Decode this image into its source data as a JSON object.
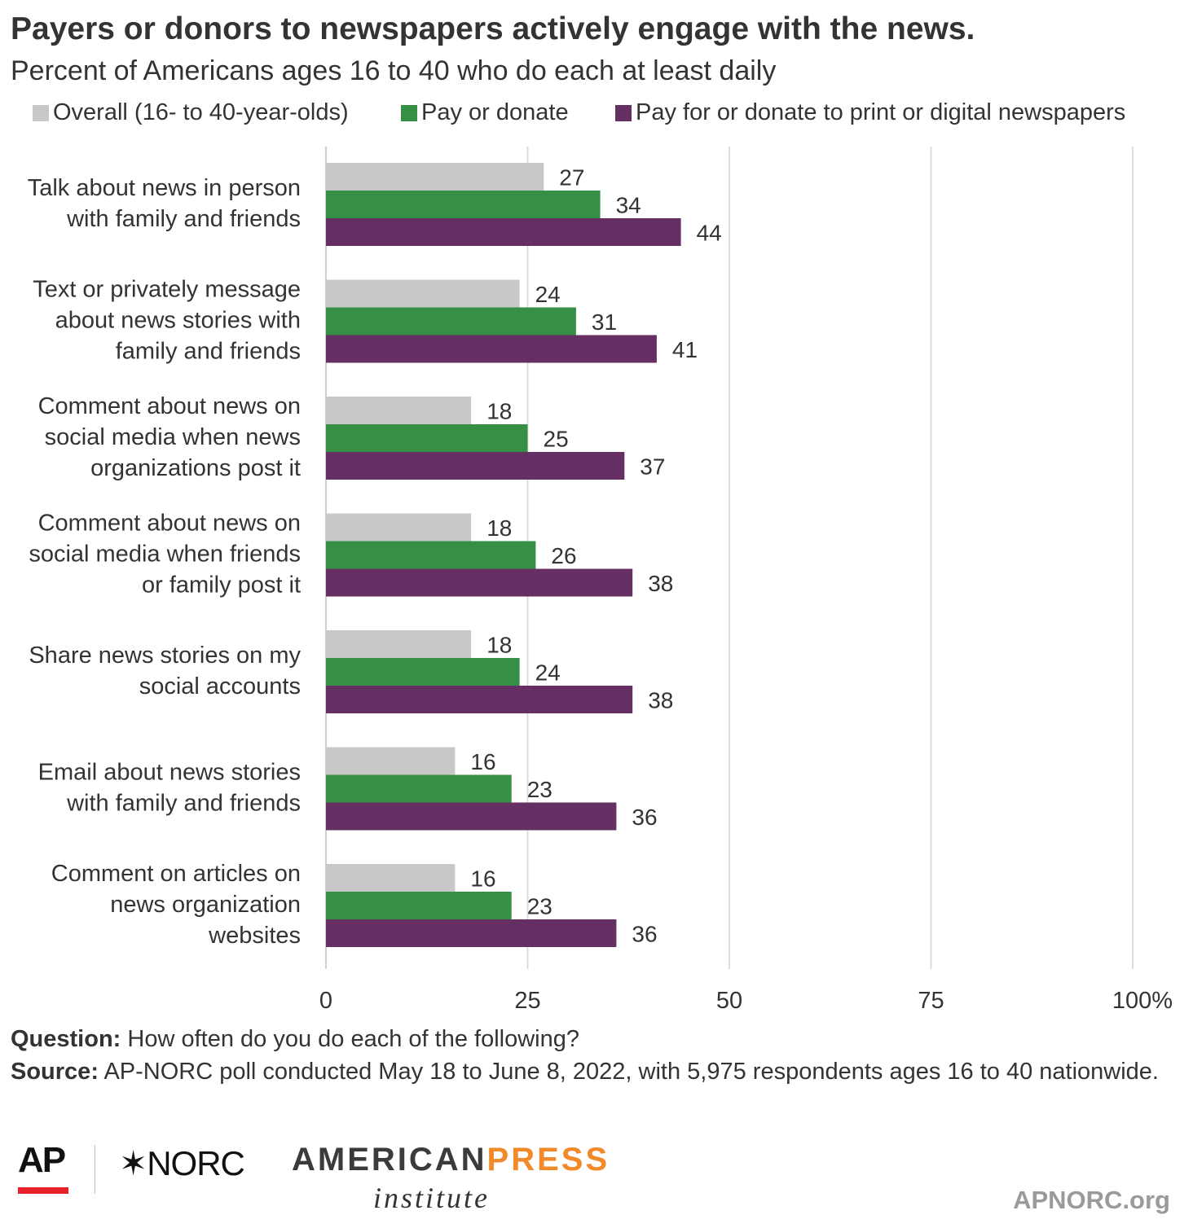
{
  "header": {
    "title": "Payers or donors to newspapers actively engage with the news.",
    "subtitle": "Percent of Americans ages 16 to 40 who do each at least daily"
  },
  "chart_data": {
    "type": "bar",
    "orientation": "horizontal",
    "categories": [
      [
        "Talk about news in person",
        "with family and friends"
      ],
      [
        "Text or privately message",
        "about news stories with",
        "family and friends"
      ],
      [
        "Comment about news on",
        "social media when news",
        "organizations post it"
      ],
      [
        "Comment about news on",
        "social media when friends",
        "or family post it"
      ],
      [
        "Share news stories on my",
        "social accounts"
      ],
      [
        "Email about news stories",
        "with family and friends"
      ],
      [
        "Comment on articles on",
        "news organization",
        "websites"
      ]
    ],
    "series": [
      {
        "name": "Overall (16- to 40-year-olds)",
        "color": "#c8c8c8",
        "values": [
          27,
          24,
          18,
          18,
          18,
          16,
          16
        ]
      },
      {
        "name": "Pay or donate",
        "color": "#358f45",
        "values": [
          34,
          31,
          25,
          26,
          24,
          23,
          23
        ]
      },
      {
        "name": "Pay for or donate to print or digital newspapers",
        "color": "#662f63",
        "values": [
          44,
          41,
          37,
          38,
          38,
          36,
          36
        ]
      }
    ],
    "xlim": [
      0,
      100
    ],
    "xticks": [
      {
        "value": 0,
        "label": "0"
      },
      {
        "value": 25,
        "label": "25"
      },
      {
        "value": 50,
        "label": "50"
      },
      {
        "value": 75,
        "label": "75"
      },
      {
        "value": 100,
        "label": "100%"
      }
    ],
    "grid": true,
    "legend_position": "top"
  },
  "notes": {
    "question_label": "Question:",
    "question_text": " How often do you do each of the following?",
    "source_label": "Source:",
    "source_text": " AP-NORC poll conducted May 18 to June 8, 2022, with 5,975 respondents ages 16 to 40 nationwide."
  },
  "footer": {
    "ap_logo": "AP",
    "norc_logo": "✶NORC",
    "api_logo_part1": "AMERICAN",
    "api_logo_part2": "PRESS",
    "api_logo_sub": "institute",
    "site": "APNORC.org"
  }
}
